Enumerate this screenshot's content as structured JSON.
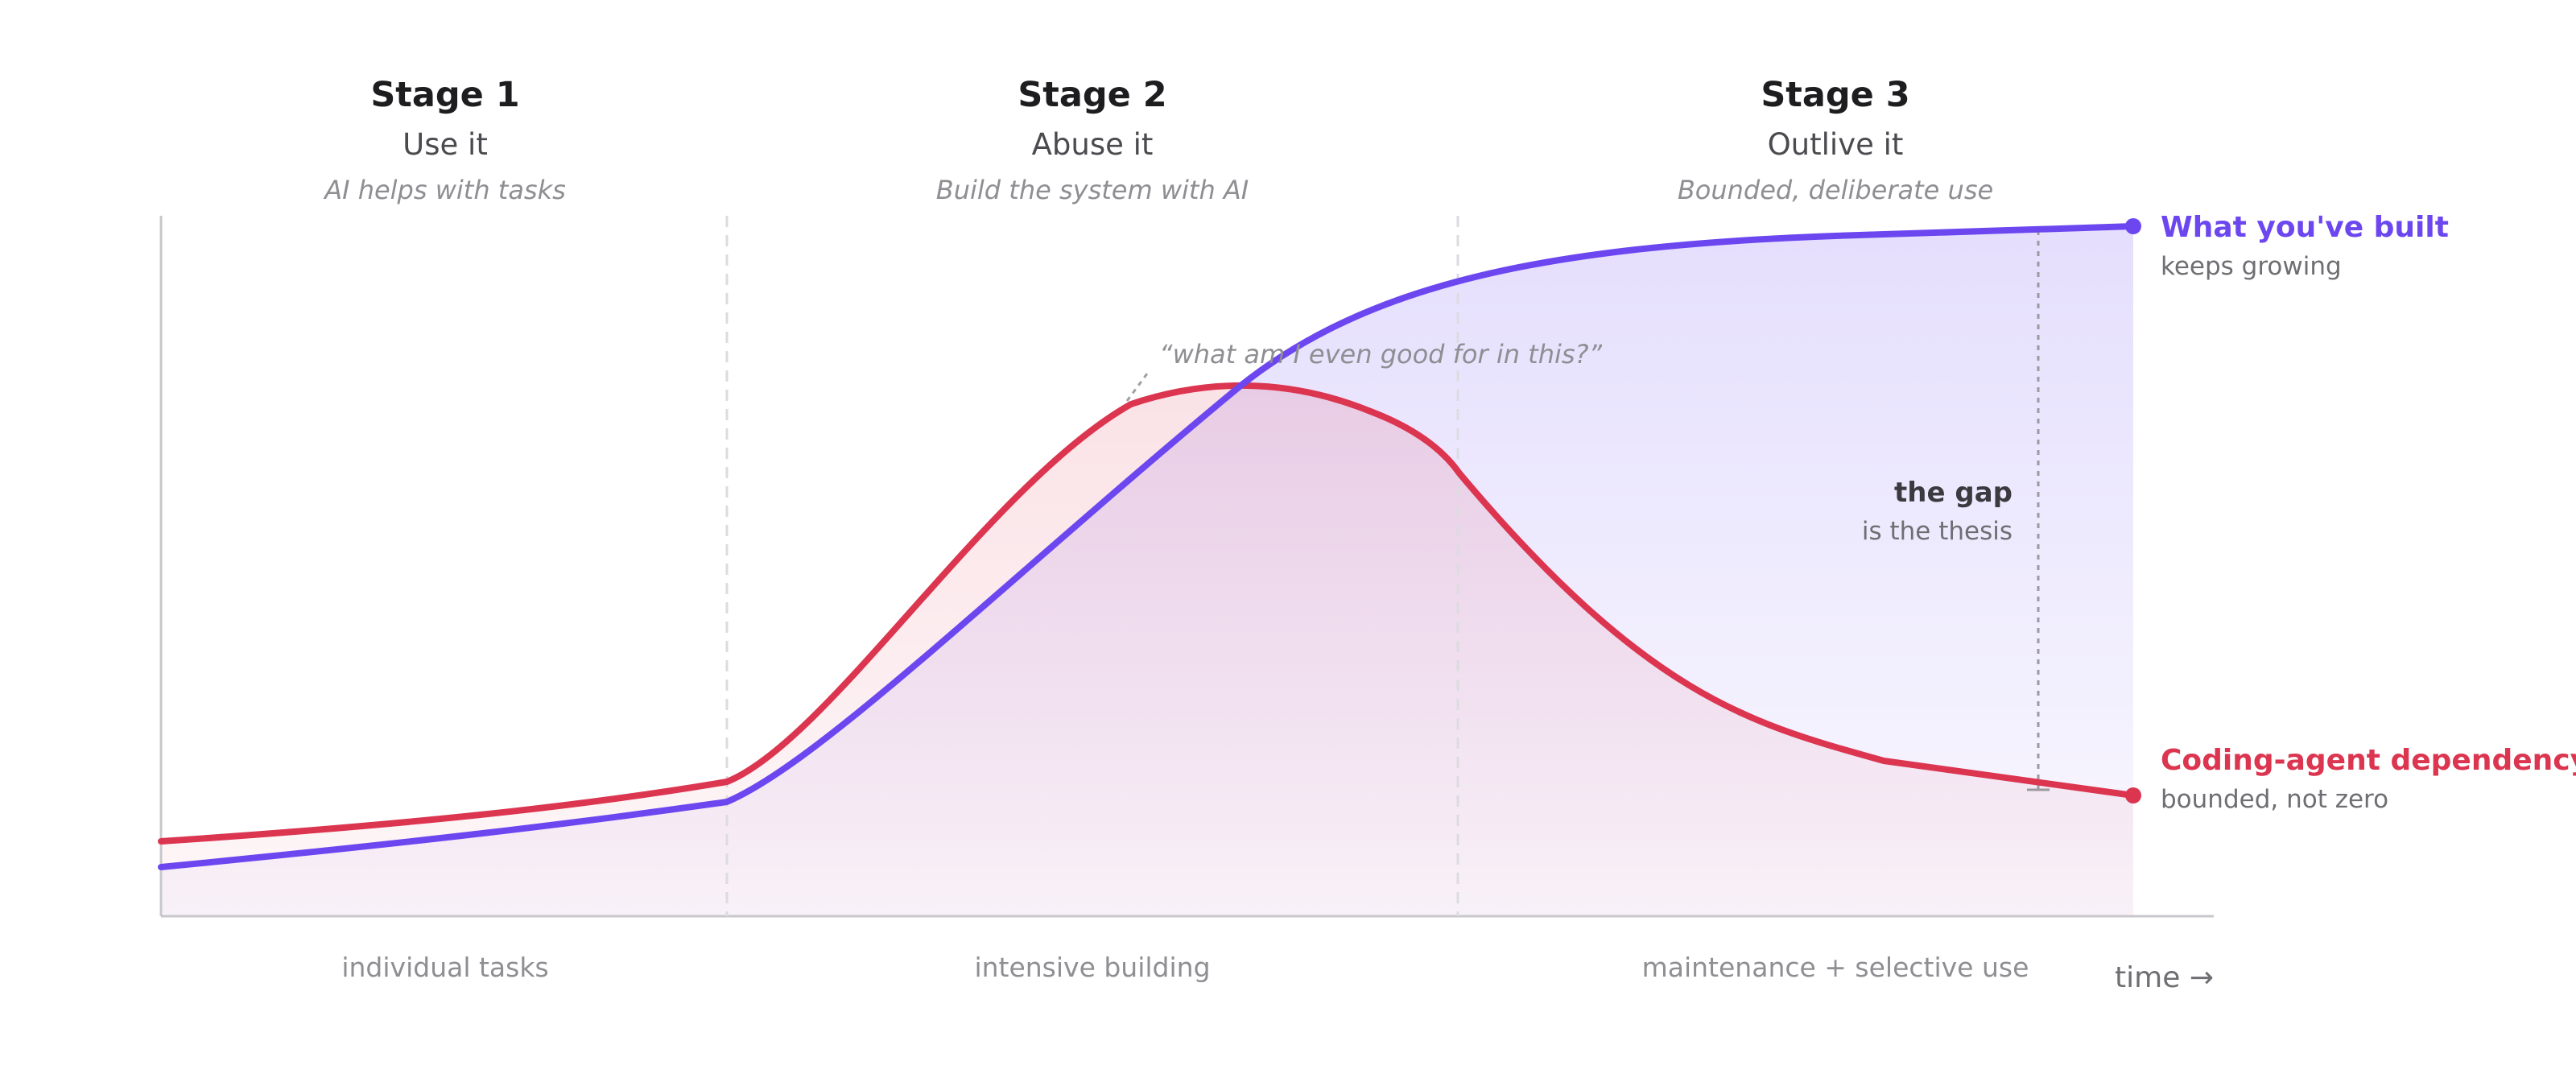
{
  "stages": [
    {
      "title": "Stage 1",
      "name": "Use it",
      "caption": "AI helps with tasks"
    },
    {
      "title": "Stage 2",
      "name": "Abuse it",
      "caption": "Build the system with AI"
    },
    {
      "title": "Stage 3",
      "name": "Outlive it",
      "caption": "Bounded, deliberate use"
    }
  ],
  "phases": [
    "individual tasks",
    "intensive building",
    "maintenance + selective use"
  ],
  "time_axis_label": "time →",
  "quote": "“what am I even good for in this?”",
  "gap": {
    "title": "the gap",
    "subtitle": "is the thesis"
  },
  "series": {
    "built": {
      "title": "What you've built",
      "subtitle": "keeps growing",
      "color": "#6c47f0"
    },
    "dependency": {
      "title": "Coding-agent dependency",
      "subtitle": "bounded, not zero",
      "color": "#dc3550"
    }
  },
  "colors": {
    "axis": "#c8c8cc",
    "divider": "#dcdce0",
    "gap_line": "#9a9aa0"
  }
}
